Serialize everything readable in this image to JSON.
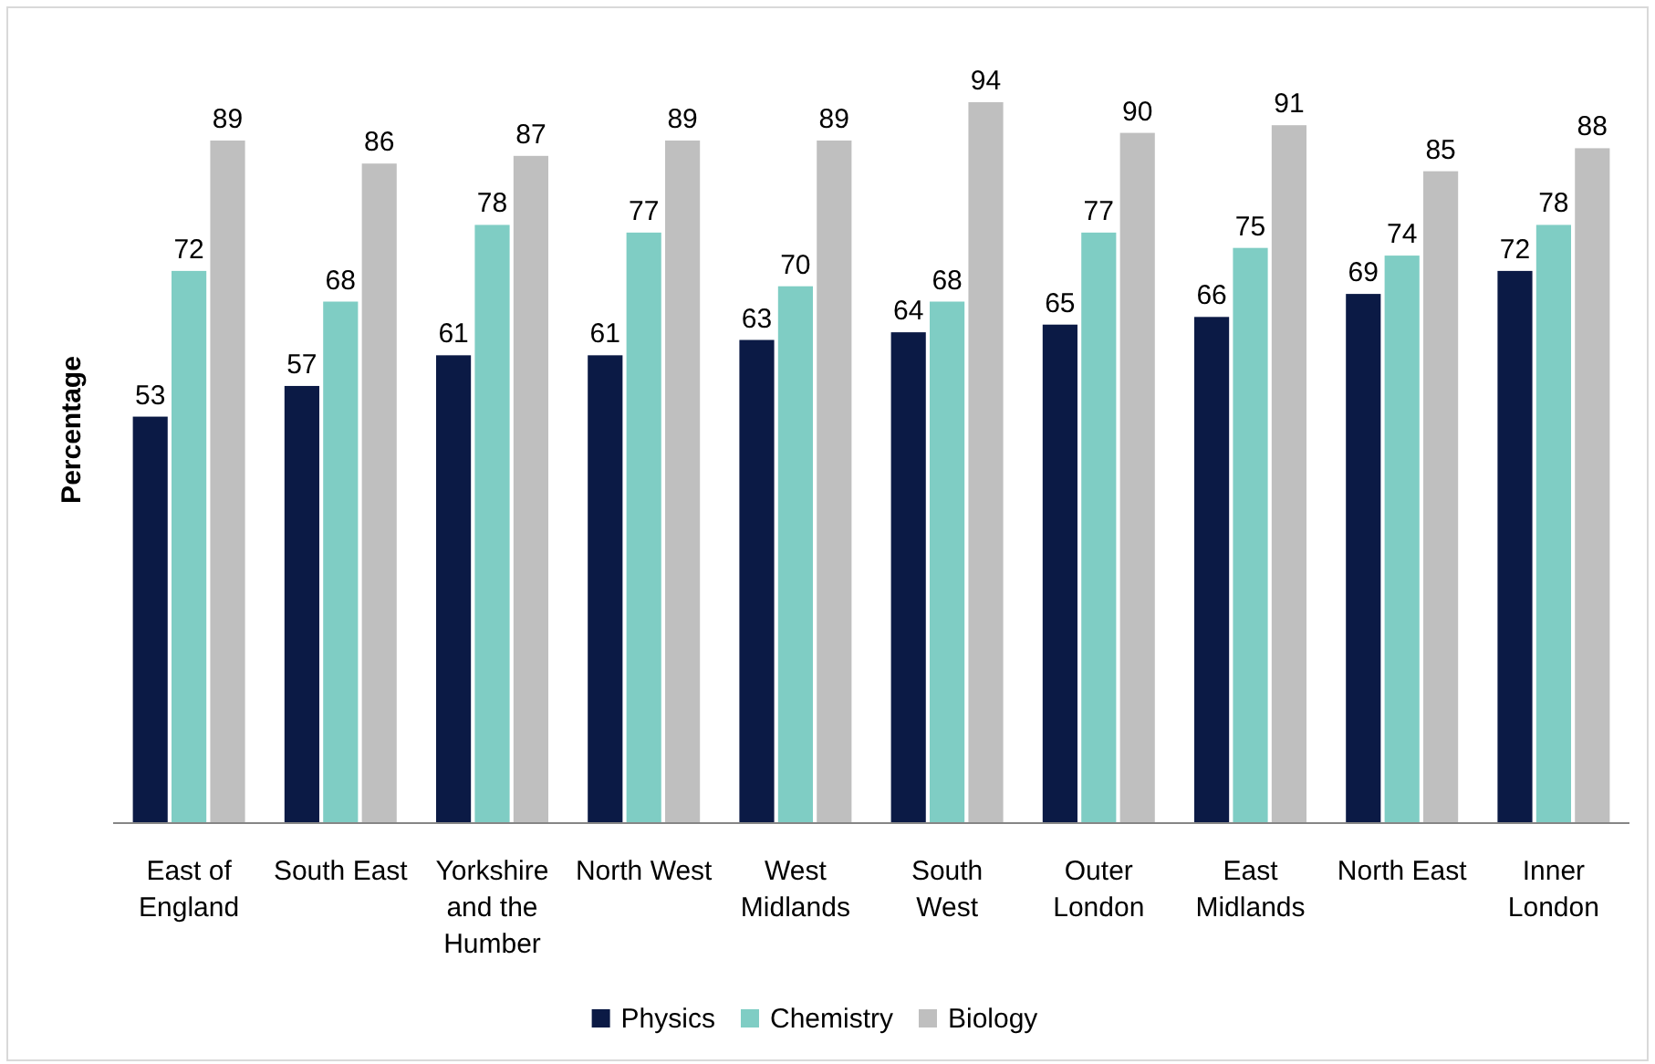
{
  "chart_data": {
    "type": "bar",
    "ylabel": "Percentage",
    "categories": [
      "East of England",
      "South East",
      "Yorkshire and the Humber",
      "North West",
      "West Midlands",
      "South West",
      "Outer London",
      "East Midlands",
      "North East",
      "Inner London"
    ],
    "series": [
      {
        "name": "Physics",
        "color": "#0b1a45",
        "values": [
          53,
          57,
          61,
          61,
          63,
          64,
          65,
          66,
          69,
          72
        ]
      },
      {
        "name": "Chemistry",
        "color": "#7fcdc4",
        "values": [
          72,
          68,
          78,
          77,
          70,
          68,
          77,
          75,
          74,
          78
        ]
      },
      {
        "name": "Biology",
        "color": "#bfbfbf",
        "values": [
          89,
          86,
          87,
          89,
          89,
          94,
          90,
          91,
          85,
          88
        ]
      }
    ],
    "data_labels": true,
    "legend": "bottom",
    "tick_labels": "x"
  }
}
